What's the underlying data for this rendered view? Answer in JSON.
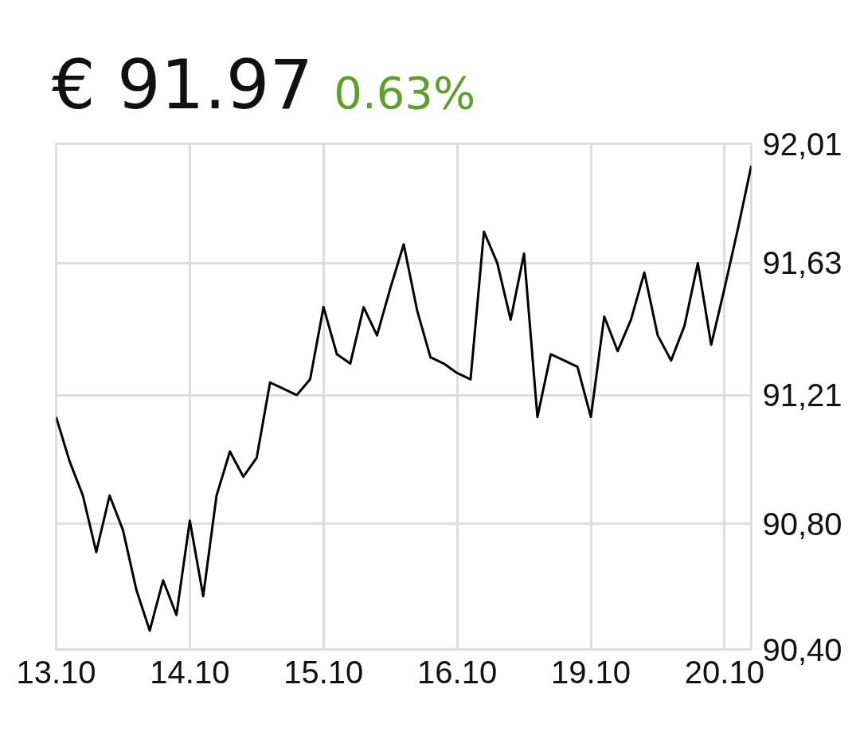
{
  "chart_data": {
    "type": "line",
    "title": "€ 91.97",
    "subtitle": "0.63%",
    "categories": [
      "13.10",
      null,
      null,
      null,
      null,
      null,
      null,
      null,
      null,
      null,
      "14.10",
      null,
      null,
      null,
      null,
      null,
      null,
      null,
      null,
      null,
      "15.10",
      null,
      null,
      null,
      null,
      null,
      null,
      null,
      null,
      null,
      "16.10",
      null,
      null,
      null,
      null,
      null,
      null,
      null,
      null,
      null,
      "19.10",
      null,
      null,
      null,
      null,
      null,
      null,
      null,
      null,
      null,
      "20.10",
      null,
      null
    ],
    "series": [
      {
        "color": "#000000",
        "values": [
          91.14,
          91.0,
          90.89,
          90.71,
          90.89,
          90.78,
          90.59,
          90.46,
          90.62,
          90.51,
          90.81,
          90.57,
          90.89,
          91.03,
          90.95,
          91.01,
          91.25,
          91.23,
          91.21,
          91.26,
          91.49,
          91.34,
          91.31,
          91.49,
          91.4,
          91.55,
          91.69,
          91.48,
          91.33,
          91.31,
          91.28,
          91.26,
          91.73,
          91.63,
          91.45,
          91.66,
          91.14,
          91.34,
          91.32,
          91.3,
          91.14,
          91.46,
          91.35,
          91.45,
          91.6,
          91.4,
          91.32,
          91.43,
          91.63,
          91.37,
          91.55,
          91.74,
          91.94
        ]
      }
    ],
    "ylim": [
      90.4,
      92.01
    ],
    "yticks": [
      {
        "value": 90.4,
        "label": "90,40"
      },
      {
        "value": 90.8,
        "label": "90,80"
      },
      {
        "value": 91.21,
        "label": "91,21"
      },
      {
        "value": 91.63,
        "label": "91,63"
      },
      {
        "value": 92.01,
        "label": "92,01"
      }
    ],
    "grid": true,
    "line_style": "solid",
    "marker": "none"
  }
}
